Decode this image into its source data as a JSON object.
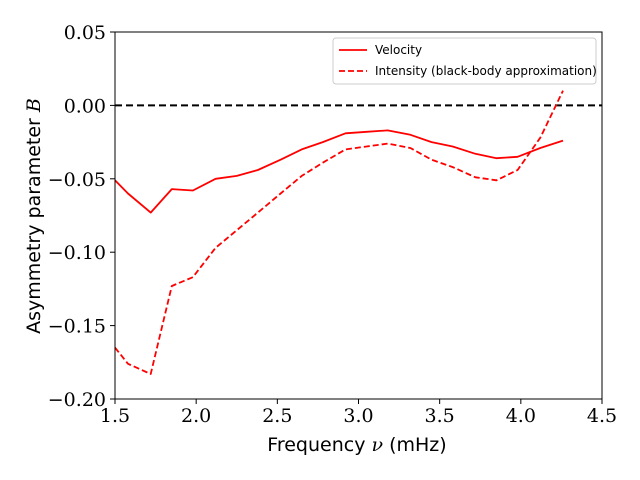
{
  "chart_data": {
    "type": "line",
    "title": "",
    "xlabel": "Frequency ν (mHz)",
    "ylabel": "Asymmetry parameter B",
    "xlim": [
      1.5,
      4.5
    ],
    "ylim": [
      -0.2,
      0.05
    ],
    "xticks": [
      1.5,
      2.0,
      2.5,
      3.0,
      3.5,
      4.0,
      4.5
    ],
    "xtick_labels": [
      "1.5",
      "2.0",
      "2.5",
      "3.0",
      "3.5",
      "4.0",
      "4.5"
    ],
    "yticks": [
      -0.2,
      -0.15,
      -0.1,
      -0.05,
      0.0,
      0.05
    ],
    "ytick_labels": [
      "−0.20",
      "−0.15",
      "−0.10",
      "−0.05",
      "0.00",
      "0.05"
    ],
    "legend_position": "top-right",
    "reference_line": {
      "y": 0.0,
      "style": "dashed",
      "color": "#000000"
    },
    "series": [
      {
        "name": "Velocity",
        "style": "solid",
        "color": "#ff0000",
        "x": [
          1.5,
          1.58,
          1.72,
          1.85,
          1.98,
          2.12,
          2.25,
          2.38,
          2.52,
          2.65,
          2.78,
          2.92,
          3.05,
          3.18,
          3.32,
          3.45,
          3.58,
          3.72,
          3.85,
          3.98,
          4.12,
          4.26
        ],
        "y": [
          -0.051,
          -0.06,
          -0.073,
          -0.057,
          -0.058,
          -0.05,
          -0.048,
          -0.044,
          -0.037,
          -0.03,
          -0.025,
          -0.019,
          -0.018,
          -0.017,
          -0.02,
          -0.025,
          -0.028,
          -0.033,
          -0.036,
          -0.035,
          -0.029,
          -0.024
        ]
      },
      {
        "name": "Intensity (black-body approximation)",
        "style": "dashed",
        "color": "#ff0000",
        "x": [
          1.5,
          1.58,
          1.72,
          1.85,
          1.98,
          2.12,
          2.25,
          2.38,
          2.52,
          2.65,
          2.78,
          2.92,
          3.05,
          3.18,
          3.32,
          3.45,
          3.58,
          3.72,
          3.85,
          3.98,
          4.12,
          4.26
        ],
        "y": [
          -0.165,
          -0.176,
          -0.183,
          -0.123,
          -0.117,
          -0.097,
          -0.085,
          -0.073,
          -0.06,
          -0.048,
          -0.039,
          -0.03,
          -0.028,
          -0.026,
          -0.029,
          -0.037,
          -0.042,
          -0.049,
          -0.051,
          -0.044,
          -0.022,
          0.01
        ]
      }
    ]
  }
}
